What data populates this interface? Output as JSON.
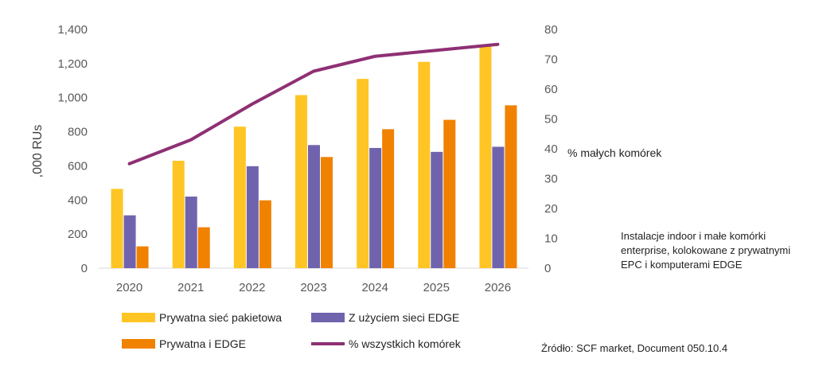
{
  "chart_data": {
    "type": "bar",
    "categories": [
      "2020",
      "2021",
      "2022",
      "2023",
      "2024",
      "2025",
      "2026"
    ],
    "series": [
      {
        "name": "Prywatna sieć pakietowa",
        "axis": "left",
        "type": "bar",
        "color": "#FFC524",
        "values": [
          465,
          630,
          830,
          1015,
          1110,
          1210,
          1300
        ]
      },
      {
        "name": "Z użyciem sieci EDGE",
        "axis": "left",
        "type": "bar",
        "color": "#7063AE",
        "values": [
          310,
          420,
          598,
          722,
          705,
          682,
          712
        ]
      },
      {
        "name": "Prywatna i EDGE",
        "axis": "left",
        "type": "bar",
        "color": "#F08200",
        "values": [
          128,
          240,
          398,
          652,
          815,
          870,
          955
        ]
      },
      {
        "name": "% wszystkich komórek",
        "axis": "right",
        "type": "line",
        "color": "#8E3074",
        "values": [
          35,
          43,
          55,
          66,
          71,
          73,
          75
        ]
      }
    ],
    "ylabel": ",000 RUs",
    "y2label": "% małych komórek",
    "ylim": [
      0,
      1400
    ],
    "yticks": [
      "0",
      "200",
      "400",
      "600",
      "800",
      "1,000",
      "1,200",
      "1,400"
    ],
    "y2lim": [
      0,
      80
    ],
    "y2ticks": [
      "0",
      "10",
      "20",
      "30",
      "40",
      "50",
      "60",
      "70",
      "80"
    ],
    "grid": "horizontal",
    "legend": "bottom"
  },
  "note": "Instalacje indoor i małe komórki enterprise, kolokowane z prywatnymi EPC i komputerami EDGE",
  "source": "Źródło: SCF market, Document 050.10.4"
}
